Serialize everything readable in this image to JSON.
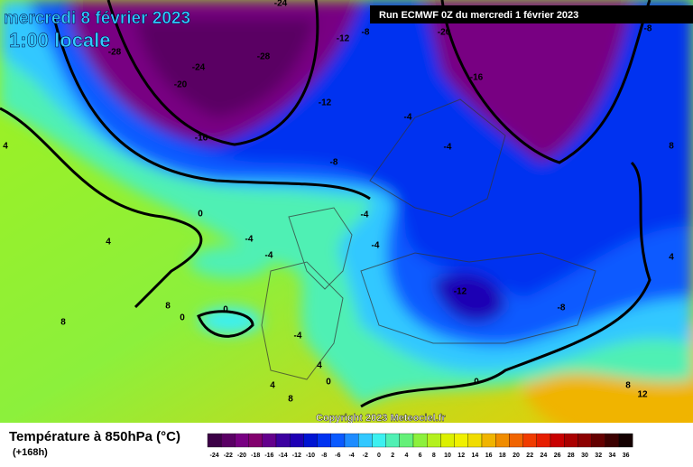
{
  "header": {
    "date": "mercredi 8 février 2023",
    "time": "1:00 locale",
    "run": "Run ECMWF 0Z du mercredi 1 février 2023"
  },
  "copyright": "Copyright 2023 Meteociel.fr",
  "legend": {
    "title": "Température à 850hPa (°C)",
    "lead": "(+168h)",
    "values": [
      -24,
      -22,
      -20,
      -18,
      -16,
      -14,
      -12,
      -10,
      -8,
      -6,
      -4,
      -2,
      0,
      2,
      4,
      6,
      8,
      10,
      12,
      14,
      16,
      18,
      20,
      22,
      24,
      26,
      28,
      30,
      32,
      34,
      36
    ],
    "colors": [
      "#3c0046",
      "#5a0064",
      "#780082",
      "#82006e",
      "#64008c",
      "#3c00a0",
      "#1e00b4",
      "#0014d2",
      "#0032f0",
      "#0a5aff",
      "#1e8cff",
      "#32c8ff",
      "#3cf0f0",
      "#50f0b4",
      "#64f078",
      "#8cf03c",
      "#b4f01e",
      "#dcf000",
      "#f0f000",
      "#f0dc00",
      "#f0b400",
      "#f08c00",
      "#f06400",
      "#f03c00",
      "#e61e00",
      "#c80000",
      "#aa0000",
      "#8c0000",
      "#640000",
      "#3c0000",
      "#140000"
    ]
  },
  "contour_labels": [
    -24,
    -28,
    -24,
    -28,
    -20,
    -16,
    -12,
    -8,
    -20,
    -8,
    -12,
    -16,
    -8,
    -4,
    -4,
    -4,
    4,
    0,
    4,
    -4,
    -4,
    -4,
    -12,
    -8,
    8,
    4,
    8,
    8,
    0,
    0,
    -4,
    4,
    0,
    4,
    8,
    0,
    8,
    12
  ]
}
